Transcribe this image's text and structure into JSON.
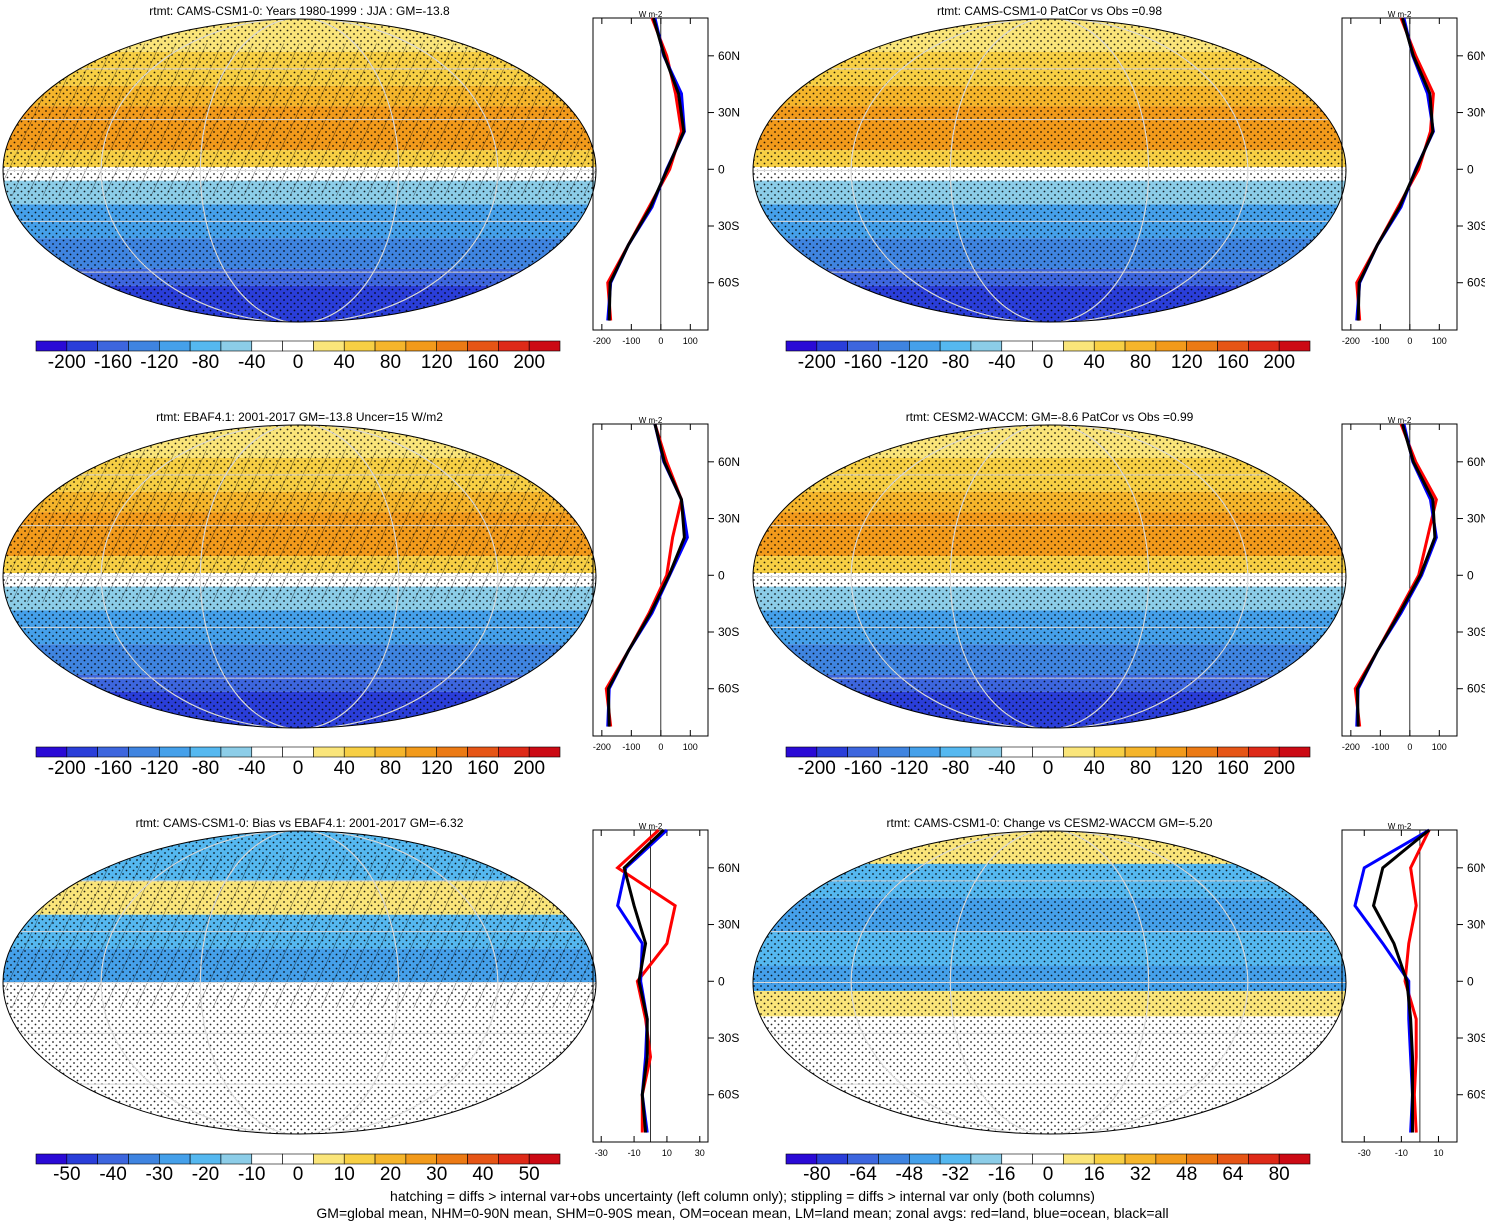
{
  "panels": [
    {
      "title": "rtmt: CAMS-CSM1-0: Years 1980-1999 : JJA : GM=-13.8",
      "kind": "clim",
      "colorbar": {
        "labels": [
          "-200",
          "-160",
          "-120",
          "-80",
          "-40",
          "0",
          "40",
          "80",
          "120",
          "160",
          "200"
        ]
      },
      "zonal": {
        "units": "W m-2",
        "xticks": [
          "-200",
          "-100",
          "0",
          "100"
        ],
        "xlim": [
          -230,
          160
        ],
        "yticks": [
          "60N",
          "30N",
          "0",
          "30S",
          "60S"
        ],
        "series": [
          "land",
          "ocean",
          "all"
        ]
      }
    },
    {
      "title": "rtmt: CAMS-CSM1-0 PatCor vs Obs =0.98",
      "kind": "clim",
      "colorbar": {
        "labels": [
          "-200",
          "-160",
          "-120",
          "-80",
          "-40",
          "0",
          "40",
          "80",
          "120",
          "160",
          "200"
        ]
      },
      "zonal": {
        "units": "W m-2",
        "xticks": [
          "-200",
          "-100",
          "0",
          "100"
        ],
        "xlim": [
          -230,
          160
        ],
        "yticks": [
          "60N",
          "30N",
          "0",
          "30S",
          "60S"
        ],
        "series": [
          "land",
          "ocean",
          "all"
        ]
      }
    },
    {
      "title": "rtmt: EBAF4.1: 2001-2017 GM=-13.8 Uncer=15 W/m2",
      "kind": "clim",
      "colorbar": {
        "labels": [
          "-200",
          "-160",
          "-120",
          "-80",
          "-40",
          "0",
          "40",
          "80",
          "120",
          "160",
          "200"
        ]
      },
      "zonal": {
        "units": "W m-2",
        "xticks": [
          "-200",
          "-100",
          "0",
          "100"
        ],
        "xlim": [
          -230,
          160
        ],
        "yticks": [
          "60N",
          "30N",
          "0",
          "30S",
          "60S"
        ],
        "series": [
          "land",
          "ocean",
          "all"
        ]
      }
    },
    {
      "title": "rtmt: CESM2-WACCM: GM=-8.6 PatCor vs Obs =0.99",
      "kind": "clim",
      "colorbar": {
        "labels": [
          "-200",
          "-160",
          "-120",
          "-80",
          "-40",
          "0",
          "40",
          "80",
          "120",
          "160",
          "200"
        ]
      },
      "zonal": {
        "units": "W m-2",
        "xticks": [
          "-200",
          "-100",
          "0",
          "100"
        ],
        "xlim": [
          -230,
          160
        ],
        "yticks": [
          "60N",
          "30N",
          "0",
          "30S",
          "60S"
        ],
        "series": [
          "land",
          "ocean",
          "all"
        ]
      }
    },
    {
      "title": "rtmt: CAMS-CSM1-0: Bias vs EBAF4.1: 2001-2017 GM=-6.32",
      "kind": "bias",
      "colorbar": {
        "labels": [
          "-50",
          "-40",
          "-30",
          "-20",
          "-10",
          "0",
          "10",
          "20",
          "30",
          "40",
          "50"
        ]
      },
      "zonal": {
        "units": "W m-2",
        "xticks": [
          "-30",
          "-10",
          "10",
          "30"
        ],
        "xlim": [
          -35,
          35
        ],
        "yticks": [
          "60N",
          "30N",
          "0",
          "30S",
          "60S"
        ],
        "series": [
          "land",
          "ocean",
          "all"
        ]
      }
    },
    {
      "title": "rtmt: CAMS-CSM1-0: Change vs CESM2-WACCM GM=-5.20",
      "kind": "change",
      "colorbar": {
        "labels": [
          "-80",
          "-64",
          "-48",
          "-32",
          "-16",
          "0",
          "16",
          "32",
          "48",
          "64",
          "80"
        ]
      },
      "zonal": {
        "units": "W m-2",
        "xticks": [
          "-30",
          "-10",
          "10"
        ],
        "xlim": [
          -42,
          20
        ],
        "yticks": [
          "60N",
          "30N",
          "0",
          "30S",
          "60S"
        ],
        "series": [
          "land",
          "ocean",
          "all"
        ]
      }
    }
  ],
  "palette": [
    "#2a0ad6",
    "#2a3ed9",
    "#3d66de",
    "#3f84e0",
    "#45a0ea",
    "#55b8f0",
    "#8ccde8",
    "#ffffff",
    "#ffffff",
    "#fae57a",
    "#f7cf44",
    "#f5b52b",
    "#f29a1b",
    "#ec7a14",
    "#e65516",
    "#de2a18",
    "#cc0a14"
  ],
  "series_colors": {
    "land": "#ff0000",
    "ocean": "#0000ff",
    "all": "#000000"
  },
  "chart_data": [
    {
      "type": "line",
      "title": "rtmt: CAMS-CSM1-0: Years 1980-1999 : JJA : GM=-13.8",
      "xlabel": "W m-2",
      "ylabel": "",
      "y": [
        -80,
        -60,
        -40,
        -20,
        0,
        20,
        40,
        60,
        80
      ],
      "series": [
        {
          "name": "land",
          "values": [
            -170,
            -180,
            -110,
            -40,
            30,
            70,
            50,
            20,
            -30
          ]
        },
        {
          "name": "ocean",
          "values": [
            -180,
            -170,
            -110,
            -30,
            20,
            80,
            70,
            10,
            -20
          ]
        },
        {
          "name": "all",
          "values": [
            -175,
            -172,
            -110,
            -35,
            22,
            78,
            60,
            12,
            -25
          ]
        }
      ]
    },
    {
      "type": "line",
      "title": "rtmt: CAMS-CSM1-0 PatCor vs Obs =0.98",
      "xlabel": "W m-2",
      "ylabel": "",
      "y": [
        -80,
        -60,
        -40,
        -20,
        0,
        20,
        40,
        60,
        80
      ],
      "series": [
        {
          "name": "land",
          "values": [
            -170,
            -180,
            -110,
            -40,
            30,
            70,
            80,
            20,
            -30
          ]
        },
        {
          "name": "ocean",
          "values": [
            -180,
            -170,
            -110,
            -30,
            20,
            80,
            60,
            10,
            -20
          ]
        },
        {
          "name": "all",
          "values": [
            -175,
            -172,
            -110,
            -35,
            22,
            78,
            68,
            12,
            -25
          ]
        }
      ]
    },
    {
      "type": "line",
      "title": "rtmt: EBAF4.1: 2001-2017 GM=-13.8 Uncer=15 W/m2",
      "xlabel": "W m-2",
      "ylabel": "",
      "y": [
        -80,
        -60,
        -40,
        -20,
        0,
        20,
        40,
        60,
        80
      ],
      "series": [
        {
          "name": "land",
          "values": [
            -170,
            -185,
            -110,
            -40,
            20,
            40,
            70,
            20,
            -20
          ]
        },
        {
          "name": "ocean",
          "values": [
            -180,
            -175,
            -110,
            -30,
            30,
            90,
            70,
            10,
            -20
          ]
        },
        {
          "name": "all",
          "values": [
            -175,
            -178,
            -110,
            -35,
            28,
            80,
            70,
            12,
            -20
          ]
        }
      ]
    },
    {
      "type": "line",
      "title": "rtmt: CESM2-WACCM: GM=-8.6 PatCor vs Obs =0.99",
      "xlabel": "W m-2",
      "ylabel": "",
      "y": [
        -80,
        -60,
        -40,
        -20,
        0,
        20,
        40,
        60,
        80
      ],
      "series": [
        {
          "name": "land",
          "values": [
            -170,
            -185,
            -110,
            -40,
            30,
            60,
            90,
            20,
            -30
          ]
        },
        {
          "name": "ocean",
          "values": [
            -180,
            -175,
            -110,
            -30,
            40,
            90,
            70,
            10,
            -20
          ]
        },
        {
          "name": "all",
          "values": [
            -175,
            -178,
            -110,
            -35,
            36,
            85,
            78,
            12,
            -25
          ]
        }
      ]
    },
    {
      "type": "line",
      "title": "rtmt: CAMS-CSM1-0: Bias vs EBAF4.1: 2001-2017 GM=-6.32",
      "xlabel": "W m-2",
      "ylabel": "",
      "y": [
        -80,
        -60,
        -40,
        -20,
        0,
        20,
        40,
        60,
        80
      ],
      "series": [
        {
          "name": "land",
          "values": [
            -5,
            -5,
            0,
            -3,
            -8,
            10,
            15,
            -20,
            5
          ]
        },
        {
          "name": "ocean",
          "values": [
            -2,
            -5,
            -3,
            -2,
            -6,
            -5,
            -20,
            -15,
            10
          ]
        },
        {
          "name": "all",
          "values": [
            -3,
            -5,
            -2,
            -2,
            -7,
            -3,
            -10,
            -16,
            8
          ]
        }
      ]
    },
    {
      "type": "line",
      "title": "rtmt: CAMS-CSM1-0: Change vs CESM2-WACCM GM=-5.20",
      "xlabel": "W m-2",
      "ylabel": "",
      "y": [
        -80,
        -60,
        -40,
        -20,
        0,
        20,
        40,
        60,
        80
      ],
      "series": [
        {
          "name": "land",
          "values": [
            -2,
            -3,
            -2,
            -2,
            -8,
            -6,
            -2,
            -5,
            5
          ]
        },
        {
          "name": "ocean",
          "values": [
            -5,
            -4,
            -5,
            -6,
            -6,
            -20,
            -35,
            -30,
            5
          ]
        },
        {
          "name": "all",
          "values": [
            -4,
            -4,
            -4,
            -5,
            -7,
            -14,
            -25,
            -20,
            5
          ]
        }
      ]
    }
  ],
  "footer": {
    "line1": "hatching = diffs > internal var+obs uncertainty (left column only); stippling = diffs > internal var only (both columns)",
    "line2": "GM=global mean, NHM=0-90N mean, SHM=0-90S mean, OM=ocean mean, LM=land mean; zonal avgs: red=land, blue=ocean, black=all"
  }
}
